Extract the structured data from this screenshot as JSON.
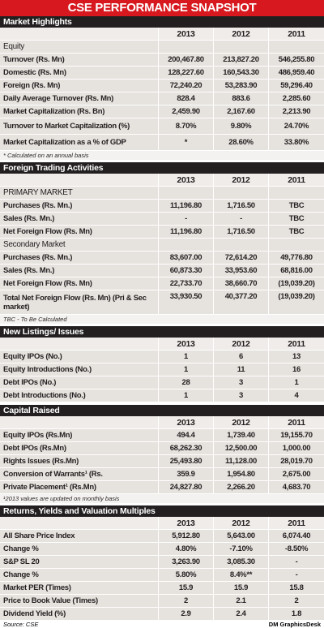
{
  "title": "CSE PERFORMANCE SNAPSHOT",
  "sections": [
    {
      "title": "Market Highlights",
      "years": [
        "2013",
        "2012",
        "2011"
      ],
      "rows": [
        {
          "subheader": "Equity"
        },
        {
          "label": "Turnover (Rs. Mn)",
          "values": [
            "200,467.80",
            "213,827.20",
            "546,255.80"
          ]
        },
        {
          "label": "Domestic (Rs. Mn)",
          "values": [
            "128,227.60",
            "160,543.30",
            "486,959.40"
          ]
        },
        {
          "label": "Foreign (Rs. Mn)",
          "values": [
            "72,240.20",
            "53,283.90",
            "59,296.40"
          ]
        },
        {
          "label": "Daily Average Turnover (Rs. Mn)",
          "values": [
            "828.4",
            "883.6",
            "2,285.60"
          ]
        },
        {
          "label": "Market Capitalization (Rs. Bn)",
          "values": [
            "2,459.90",
            "2,167.60",
            "2,213.90"
          ]
        },
        {
          "label": "Turnover to Market Capitalization (%)",
          "values": [
            "8.70%",
            "9.80%",
            "24.70%"
          ]
        },
        {
          "label": "Market Capitalization as a % of GDP",
          "values": [
            "*",
            "28.60%",
            "33.80%"
          ]
        }
      ],
      "note": "* Calculated on an annual basis"
    },
    {
      "title": "Foreign Trading Activities",
      "years": [
        "2013",
        "2012",
        "2011"
      ],
      "rows": [
        {
          "subheader": "PRIMARY MARKET"
        },
        {
          "label": "Purchases (Rs. Mn.)",
          "values": [
            "11,196.80",
            "1,716.50",
            "TBC"
          ]
        },
        {
          "label": "Sales (Rs. Mn.)",
          "values": [
            "-",
            "-",
            "TBC"
          ]
        },
        {
          "label": "Net Foreign Flow (Rs. Mn)",
          "values": [
            "11,196.80",
            "1,716.50",
            "TBC"
          ]
        },
        {
          "subheader": "Secondary Market"
        },
        {
          "label": "Purchases (Rs. Mn.)",
          "values": [
            "83,607.00",
            "72,614.20",
            "49,776.80"
          ]
        },
        {
          "label": "Sales (Rs. Mn.)",
          "values": [
            "60,873.30",
            "33,953.60",
            "68,816.00"
          ]
        },
        {
          "label": "Net Foreign Flow (Rs. Mn)",
          "values": [
            "22,733.70",
            "38,660.70",
            "(19,039.20)"
          ]
        },
        {
          "label": "Total Net Foreign Flow (Rs. Mn) (Pri & Sec market)",
          "values": [
            "33,930.50",
            "40,377.20",
            "(19,039.20)"
          ]
        }
      ],
      "note": "TBC - To Be Calculated"
    },
    {
      "title": "New Listings/ Issues",
      "years": [
        "2013",
        "2012",
        "2011"
      ],
      "rows": [
        {
          "label": "Equity IPOs (No.)",
          "values": [
            "1",
            "6",
            "13"
          ]
        },
        {
          "label": "Equity Introductions (No.)",
          "values": [
            "1",
            "11",
            "16"
          ]
        },
        {
          "label": "Debt IPOs (No.)",
          "values": [
            "28",
            "3",
            "1"
          ]
        },
        {
          "label": "Debt Introductions (No.)",
          "values": [
            "1",
            "3",
            "4"
          ]
        }
      ]
    },
    {
      "title": "Capital Raised",
      "years": [
        "2013",
        "2012",
        "2011"
      ],
      "rows": [
        {
          "label": "Equity IPOs (Rs.Mn)",
          "values": [
            "494.4",
            "1,739.40",
            "19,155.70"
          ]
        },
        {
          "label": "Debt IPOs (Rs.Mn)",
          "values": [
            "68,262.30",
            "12,500.00",
            "1,000.00"
          ]
        },
        {
          "label": "Rights Issues (Rs.Mn)",
          "values": [
            "25,493.80",
            "11,128.00",
            "28,019.70"
          ]
        },
        {
          "label": "Conversion of Warrants¹ (Rs.",
          "values": [
            "359.9",
            "1,954.80",
            "2,675.00"
          ]
        },
        {
          "label": "Private Placement¹ (Rs.Mn)",
          "values": [
            "24,827.80",
            "2,266.20",
            "4,683.70"
          ]
        }
      ],
      "note": "¹2013 values are updated on monthly basis"
    },
    {
      "title": "Returns, Yields and Valuation Multiples",
      "years": [
        "2013",
        "2012",
        "2011"
      ],
      "rows": [
        {
          "label": "All Share Price Index",
          "values": [
            "5,912.80",
            "5,643.00",
            "6,074.40"
          ]
        },
        {
          "label": "Change %",
          "values": [
            "4.80%",
            "-7.10%",
            "-8.50%"
          ]
        },
        {
          "label": "S&P SL 20",
          "values": [
            "3,263.90",
            "3,085.30",
            "-"
          ]
        },
        {
          "label": "Change %",
          "values": [
            "5.80%",
            "8.4%**",
            "-"
          ]
        },
        {
          "label": "Market PER (Times)",
          "values": [
            "15.9",
            "15.9",
            "15.8"
          ]
        },
        {
          "label": "Price to Book Value (Times)",
          "values": [
            "2",
            "2.1",
            "2"
          ]
        },
        {
          "label": "Dividend Yield (%)",
          "values": [
            "2.9",
            "2.4",
            "1.8"
          ]
        }
      ]
    }
  ],
  "footer": {
    "source": "Source: CSE",
    "credit": "DM GraphicsDesk"
  }
}
